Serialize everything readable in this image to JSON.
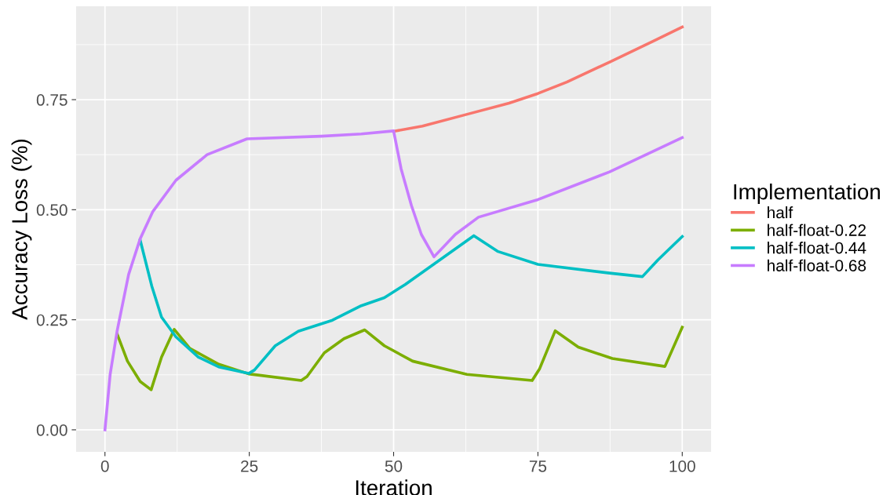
{
  "chart_data": {
    "type": "line",
    "xlabel": "Iteration",
    "ylabel": "Accuracy Loss (%)",
    "legend_title": "Implementation",
    "legend": "right",
    "grid": true,
    "line_style": "solid",
    "marker": "none",
    "xlim": [
      -5,
      105
    ],
    "ylim": [
      -0.05,
      0.962
    ],
    "xticks": [
      0,
      25,
      50,
      75,
      100
    ],
    "yticks": [
      {
        "value": 0,
        "label": "0.00"
      },
      {
        "value": 0.25,
        "label": "0.25"
      },
      {
        "value": 0.5,
        "label": "0.50"
      },
      {
        "value": 0.75,
        "label": "0.75"
      }
    ],
    "series": [
      {
        "name": "half",
        "color": "#f8766d",
        "x": [
          50,
          55,
          62.5,
          70,
          75,
          80,
          87.5,
          95,
          100
        ],
        "values": [
          0.678,
          0.69,
          0.716,
          0.742,
          0.764,
          0.79,
          0.836,
          0.883,
          0.915
        ]
      },
      {
        "name": "half-float-0.22",
        "color": "#7cae00",
        "x": [
          2.1,
          3.9,
          6.1,
          8,
          9.8,
          12,
          14.7,
          19.7,
          24.9,
          34,
          35,
          38,
          41.4,
          45,
          48.4,
          53.3,
          62.7,
          74,
          75.3,
          78,
          82,
          87.9,
          97,
          100
        ],
        "values": [
          0.218,
          0.156,
          0.11,
          0.091,
          0.165,
          0.228,
          0.185,
          0.149,
          0.127,
          0.112,
          0.121,
          0.175,
          0.207,
          0.227,
          0.191,
          0.156,
          0.126,
          0.112,
          0.139,
          0.225,
          0.188,
          0.162,
          0.144,
          0.233
        ]
      },
      {
        "name": "half-float-0.44",
        "color": "#00bfc4",
        "x": [
          6.1,
          8.1,
          9.8,
          12.3,
          16.2,
          19.7,
          24.9,
          25.9,
          29.5,
          33.5,
          39.4,
          44.4,
          48.4,
          52,
          63.9,
          68.1,
          75,
          87.4,
          93.1,
          95.8,
          100
        ],
        "values": [
          0.431,
          0.327,
          0.256,
          0.211,
          0.165,
          0.143,
          0.128,
          0.136,
          0.191,
          0.224,
          0.249,
          0.282,
          0.3,
          0.33,
          0.441,
          0.405,
          0.376,
          0.356,
          0.348,
          0.386,
          0.439
        ]
      },
      {
        "name": "half-float-0.68",
        "color": "#c77cff",
        "x": [
          0,
          0.9,
          2.1,
          4.1,
          6.1,
          8.3,
          12.3,
          17.7,
          24.6,
          37.5,
          44.4,
          50,
          51.3,
          53.1,
          54.8,
          57,
          60.7,
          64.7,
          75,
          87.4,
          100
        ],
        "values": [
          0,
          0.126,
          0.224,
          0.353,
          0.434,
          0.496,
          0.567,
          0.625,
          0.661,
          0.667,
          0.672,
          0.679,
          0.593,
          0.509,
          0.444,
          0.393,
          0.444,
          0.483,
          0.523,
          0.586,
          0.664
        ]
      }
    ]
  }
}
